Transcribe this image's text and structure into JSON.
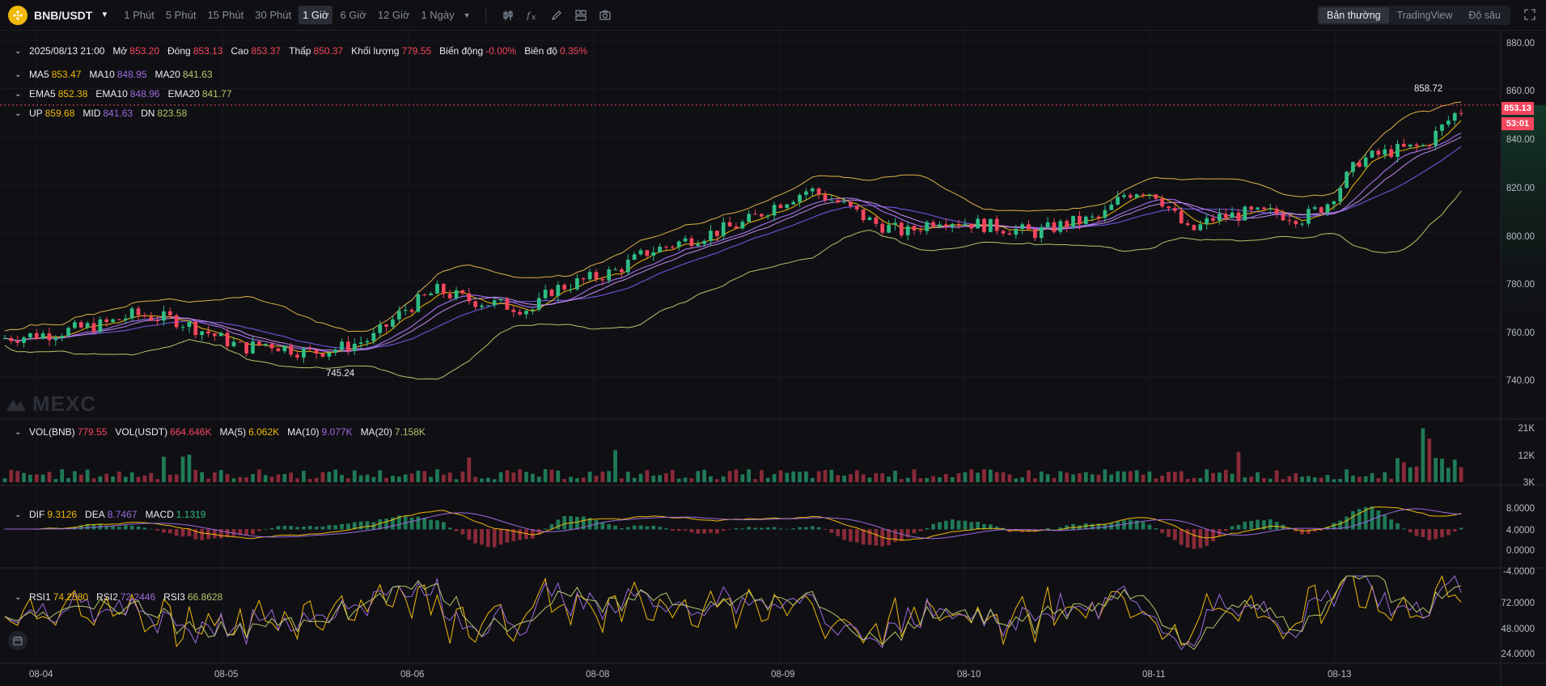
{
  "toolbar": {
    "symbol": "BNB/USDT",
    "timeframes": [
      "1 Phút",
      "5 Phút",
      "15 Phút",
      "30 Phút",
      "1 Giờ",
      "6 Giờ",
      "12 Giờ"
    ],
    "active_timeframe": "1 Giờ",
    "more_timeframe": "1 Ngày",
    "views": [
      "Bản thường",
      "TradingView",
      "Độ sâu"
    ],
    "active_view": "Bản thường"
  },
  "ohlc": {
    "date": "2025/08/13 21:00",
    "open_label": "Mở",
    "open": "853.20",
    "close_label": "Đóng",
    "close": "853.13",
    "high_label": "Cao",
    "high": "853.37",
    "low_label": "Thấp",
    "low": "850.37",
    "volume_label": "Khối lượng",
    "volume": "779.55",
    "change_label": "Biến động",
    "change": "-0.00%",
    "amplitude_label": "Biên độ",
    "amplitude": "0.35%"
  },
  "ma": {
    "ma5_label": "MA5",
    "ma5": "853.47",
    "ma10_label": "MA10",
    "ma10": "848.95",
    "ma20_label": "MA20",
    "ma20": "841.63"
  },
  "ema": {
    "ema5_label": "EMA5",
    "ema5": "852.38",
    "ema10_label": "EMA10",
    "ema10": "848.96",
    "ema20_label": "EMA20",
    "ema20": "841.77"
  },
  "boll": {
    "up_label": "UP",
    "up": "859.68",
    "mid_label": "MID",
    "mid": "841.63",
    "dn_label": "DN",
    "dn": "823.58"
  },
  "vol": {
    "vol_bnb_label": "VOL(BNB)",
    "vol_bnb": "779.55",
    "vol_usdt_label": "VOL(USDT)",
    "vol_usdt": "664.646K",
    "ma5_label": "MA(5)",
    "ma5": "6.062K",
    "ma10_label": "MA(10)",
    "ma10": "9.077K",
    "ma20_label": "MA(20)",
    "ma20": "7.158K"
  },
  "macd": {
    "dif_label": "DIF",
    "dif": "9.3126",
    "dea_label": "DEA",
    "dea": "8.7467",
    "macd_label": "MACD",
    "macd": "1.1319"
  },
  "rsi": {
    "rsi1_label": "RSI1",
    "rsi1": "74.2580",
    "rsi2_label": "RSI2",
    "rsi2": "72.2446",
    "rsi3_label": "RSI3",
    "rsi3": "66.8628"
  },
  "price_axis": [
    "880.00",
    "860.00",
    "840.00",
    "820.00",
    "800.00",
    "780.00",
    "760.00",
    "740.00"
  ],
  "vol_axis": [
    "21K",
    "12K",
    "3K"
  ],
  "macd_axis": [
    "8.0000",
    "4.0000",
    "0.0000",
    "-4.0000"
  ],
  "rsi_axis": [
    "72.0000",
    "48.0000",
    "24.0000"
  ],
  "x_axis": [
    "08-04",
    "08-05",
    "08-06",
    "08-08",
    "08-09",
    "08-10",
    "08-11",
    "08-13"
  ],
  "last_price": "853.13",
  "countdown": "53:01",
  "high_marker": "858.72",
  "low_marker": "745.24",
  "watermark": "MEXC",
  "colors": {
    "up": "#2ebd85",
    "down": "#f6465d",
    "bg": "#101014"
  }
}
